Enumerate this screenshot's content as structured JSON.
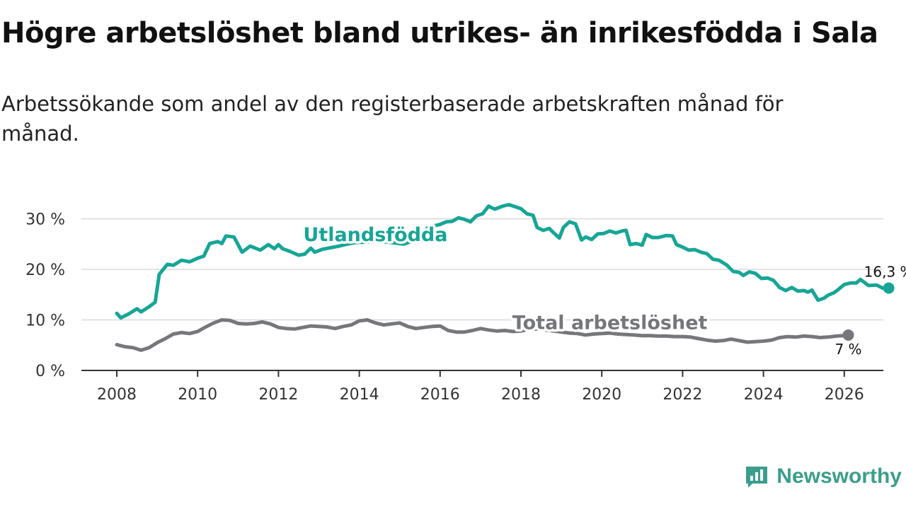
{
  "title": "Högre arbetslöshet bland utrikes- än inrikesfödda i Sala",
  "subtitle": "Arbetssökande som andel av den registerbaserade arbetskraften månad för månad.",
  "brand": {
    "name": "Newsworthy",
    "icon": "newsworthy-logo-icon",
    "color": "#3a9e8c"
  },
  "chart_data": {
    "type": "line",
    "x_unit": "year",
    "xlim": [
      2007.9,
      2026.1
    ],
    "ylim": [
      0,
      30
    ],
    "x_ticks": [
      2008,
      2010,
      2012,
      2014,
      2016,
      2018,
      2020,
      2022,
      2024,
      2026
    ],
    "y_ticks": [
      0,
      10,
      20,
      30
    ],
    "y_tick_labels": [
      "0 %",
      "10 %",
      "20 %",
      "30 %"
    ],
    "grid": true,
    "series": [
      {
        "name": "Utlandsfödda",
        "color": "#17a596",
        "end_label": "16,3 %",
        "label_at": [
          2014.4,
          25.6
        ],
        "points": [
          [
            2008.0,
            11.3
          ],
          [
            2008.1,
            10.4
          ],
          [
            2008.3,
            11.2
          ],
          [
            2008.5,
            12.2
          ],
          [
            2008.6,
            11.6
          ],
          [
            2008.8,
            12.6
          ],
          [
            2008.95,
            13.5
          ],
          [
            2009.05,
            19.0
          ],
          [
            2009.25,
            21.0
          ],
          [
            2009.4,
            20.8
          ],
          [
            2009.6,
            21.8
          ],
          [
            2009.8,
            21.5
          ],
          [
            2010.0,
            22.2
          ],
          [
            2010.15,
            22.6
          ],
          [
            2010.3,
            25.1
          ],
          [
            2010.5,
            25.5
          ],
          [
            2010.6,
            25.1
          ],
          [
            2010.7,
            26.6
          ],
          [
            2010.9,
            26.4
          ],
          [
            2011.1,
            23.4
          ],
          [
            2011.3,
            24.6
          ],
          [
            2011.55,
            23.8
          ],
          [
            2011.75,
            24.9
          ],
          [
            2011.9,
            24.1
          ],
          [
            2012.0,
            24.9
          ],
          [
            2012.1,
            24.1
          ],
          [
            2012.3,
            23.5
          ],
          [
            2012.5,
            22.8
          ],
          [
            2012.65,
            23.0
          ],
          [
            2012.8,
            24.2
          ],
          [
            2012.9,
            23.4
          ],
          [
            2013.1,
            24.0
          ],
          [
            2013.3,
            24.3
          ],
          [
            2013.5,
            24.6
          ],
          [
            2013.7,
            25.0
          ],
          [
            2013.9,
            25.3
          ],
          [
            2014.2,
            25.4
          ],
          [
            2014.5,
            25.6
          ],
          [
            2014.8,
            25.3
          ],
          [
            2015.1,
            25.0
          ],
          [
            2015.4,
            25.8
          ],
          [
            2015.7,
            28.3
          ],
          [
            2015.85,
            28.6
          ],
          [
            2016.0,
            28.9
          ],
          [
            2016.15,
            29.4
          ],
          [
            2016.3,
            29.5
          ],
          [
            2016.45,
            30.2
          ],
          [
            2016.6,
            29.9
          ],
          [
            2016.75,
            29.4
          ],
          [
            2016.9,
            30.6
          ],
          [
            2017.05,
            31.0
          ],
          [
            2017.2,
            32.5
          ],
          [
            2017.35,
            31.9
          ],
          [
            2017.55,
            32.5
          ],
          [
            2017.7,
            32.8
          ],
          [
            2017.85,
            32.4
          ],
          [
            2018.0,
            32.0
          ],
          [
            2018.15,
            31.0
          ],
          [
            2018.3,
            30.7
          ],
          [
            2018.4,
            28.3
          ],
          [
            2018.55,
            27.7
          ],
          [
            2018.7,
            28.1
          ],
          [
            2018.8,
            27.3
          ],
          [
            2018.95,
            26.2
          ],
          [
            2019.05,
            28.3
          ],
          [
            2019.2,
            29.4
          ],
          [
            2019.35,
            29.0
          ],
          [
            2019.5,
            25.8
          ],
          [
            2019.6,
            26.4
          ],
          [
            2019.75,
            25.9
          ],
          [
            2019.9,
            27.0
          ],
          [
            2020.05,
            27.1
          ],
          [
            2020.2,
            27.6
          ],
          [
            2020.35,
            27.2
          ],
          [
            2020.5,
            27.6
          ],
          [
            2020.6,
            27.7
          ],
          [
            2020.7,
            24.9
          ],
          [
            2020.85,
            25.1
          ],
          [
            2021.0,
            24.8
          ],
          [
            2021.1,
            26.9
          ],
          [
            2021.25,
            26.3
          ],
          [
            2021.4,
            26.3
          ],
          [
            2021.6,
            26.7
          ],
          [
            2021.75,
            26.6
          ],
          [
            2021.85,
            24.9
          ],
          [
            2022.0,
            24.4
          ],
          [
            2022.15,
            23.8
          ],
          [
            2022.3,
            23.9
          ],
          [
            2022.45,
            23.4
          ],
          [
            2022.6,
            23.1
          ],
          [
            2022.75,
            22.0
          ],
          [
            2022.9,
            21.8
          ],
          [
            2023.1,
            20.8
          ],
          [
            2023.25,
            19.6
          ],
          [
            2023.4,
            19.4
          ],
          [
            2023.5,
            18.8
          ],
          [
            2023.65,
            19.5
          ],
          [
            2023.8,
            19.2
          ],
          [
            2023.95,
            18.2
          ],
          [
            2024.1,
            18.3
          ],
          [
            2024.25,
            17.8
          ],
          [
            2024.4,
            16.4
          ],
          [
            2024.55,
            15.8
          ],
          [
            2024.7,
            16.4
          ],
          [
            2024.85,
            15.7
          ],
          [
            2025.0,
            15.8
          ],
          [
            2025.1,
            15.5
          ],
          [
            2025.2,
            15.9
          ],
          [
            2025.35,
            13.9
          ],
          [
            2025.5,
            14.3
          ],
          [
            2025.6,
            14.9
          ],
          [
            2025.75,
            15.4
          ],
          [
            2025.85,
            16.0
          ],
          [
            2026.0,
            17.0
          ],
          [
            2026.15,
            17.3
          ],
          [
            2026.3,
            17.3
          ],
          [
            2026.4,
            18.0
          ],
          [
            2026.5,
            17.4
          ],
          [
            2026.6,
            16.8
          ],
          [
            2026.8,
            16.9
          ],
          [
            2026.95,
            16.3
          ],
          [
            2027.1,
            16.3
          ]
        ]
      },
      {
        "name": "Total arbetslöshet",
        "color": "#76777b",
        "end_label": "7 %",
        "label_at": [
          2020.2,
          8.2
        ],
        "points": [
          [
            2008.0,
            5.1
          ],
          [
            2008.2,
            4.7
          ],
          [
            2008.4,
            4.5
          ],
          [
            2008.6,
            4.0
          ],
          [
            2008.8,
            4.5
          ],
          [
            2009.0,
            5.5
          ],
          [
            2009.2,
            6.3
          ],
          [
            2009.4,
            7.2
          ],
          [
            2009.6,
            7.5
          ],
          [
            2009.8,
            7.3
          ],
          [
            2010.0,
            7.7
          ],
          [
            2010.2,
            8.6
          ],
          [
            2010.4,
            9.4
          ],
          [
            2010.6,
            10.0
          ],
          [
            2010.8,
            9.9
          ],
          [
            2011.0,
            9.3
          ],
          [
            2011.2,
            9.2
          ],
          [
            2011.4,
            9.3
          ],
          [
            2011.6,
            9.6
          ],
          [
            2011.8,
            9.2
          ],
          [
            2012.0,
            8.5
          ],
          [
            2012.2,
            8.3
          ],
          [
            2012.4,
            8.2
          ],
          [
            2012.6,
            8.5
          ],
          [
            2012.8,
            8.8
          ],
          [
            2013.0,
            8.7
          ],
          [
            2013.2,
            8.6
          ],
          [
            2013.4,
            8.3
          ],
          [
            2013.6,
            8.7
          ],
          [
            2013.8,
            9.0
          ],
          [
            2014.0,
            9.8
          ],
          [
            2014.2,
            10.0
          ],
          [
            2014.4,
            9.4
          ],
          [
            2014.6,
            9.0
          ],
          [
            2014.8,
            9.2
          ],
          [
            2015.0,
            9.4
          ],
          [
            2015.2,
            8.7
          ],
          [
            2015.4,
            8.3
          ],
          [
            2015.6,
            8.5
          ],
          [
            2015.8,
            8.7
          ],
          [
            2016.0,
            8.8
          ],
          [
            2016.2,
            7.9
          ],
          [
            2016.4,
            7.6
          ],
          [
            2016.6,
            7.6
          ],
          [
            2016.8,
            7.9
          ],
          [
            2017.0,
            8.3
          ],
          [
            2017.2,
            8.0
          ],
          [
            2017.4,
            7.8
          ],
          [
            2017.6,
            7.9
          ],
          [
            2017.8,
            7.7
          ],
          [
            2018.0,
            7.8
          ],
          [
            2018.2,
            8.2
          ],
          [
            2018.4,
            8.2
          ],
          [
            2018.6,
            8.0
          ],
          [
            2018.8,
            7.8
          ],
          [
            2019.0,
            7.6
          ],
          [
            2019.2,
            7.4
          ],
          [
            2019.4,
            7.3
          ],
          [
            2019.6,
            7.0
          ],
          [
            2019.8,
            7.2
          ],
          [
            2020.0,
            7.3
          ],
          [
            2020.2,
            7.4
          ],
          [
            2020.4,
            7.2
          ],
          [
            2020.6,
            7.1
          ],
          [
            2020.8,
            7.0
          ],
          [
            2021.0,
            6.9
          ],
          [
            2021.2,
            6.9
          ],
          [
            2021.4,
            6.8
          ],
          [
            2021.6,
            6.8
          ],
          [
            2021.8,
            6.7
          ],
          [
            2022.0,
            6.7
          ],
          [
            2022.2,
            6.6
          ],
          [
            2022.4,
            6.3
          ],
          [
            2022.6,
            6.0
          ],
          [
            2022.8,
            5.8
          ],
          [
            2023.0,
            5.9
          ],
          [
            2023.2,
            6.2
          ],
          [
            2023.4,
            5.9
          ],
          [
            2023.6,
            5.6
          ],
          [
            2023.8,
            5.7
          ],
          [
            2024.0,
            5.8
          ],
          [
            2024.2,
            6.0
          ],
          [
            2024.4,
            6.5
          ],
          [
            2024.6,
            6.7
          ],
          [
            2024.8,
            6.6
          ],
          [
            2025.0,
            6.8
          ],
          [
            2025.2,
            6.7
          ],
          [
            2025.4,
            6.5
          ],
          [
            2025.6,
            6.6
          ],
          [
            2025.8,
            6.8
          ],
          [
            2026.0,
            6.9
          ],
          [
            2026.1,
            7.0
          ]
        ]
      }
    ]
  }
}
